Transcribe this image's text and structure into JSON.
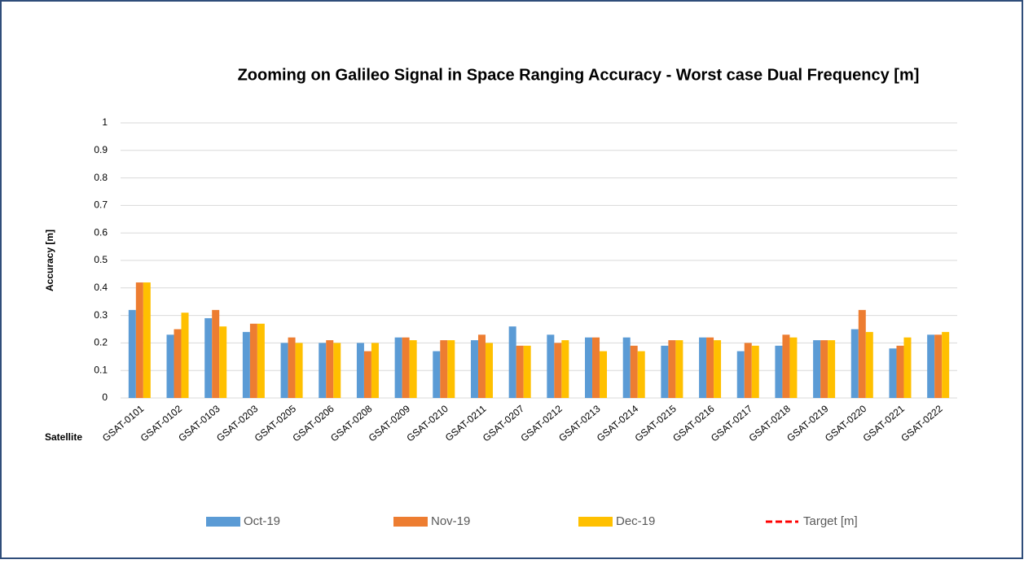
{
  "chart_data": {
    "type": "bar",
    "title": "Zooming on Galileo Signal in Space Ranging Accuracy - Worst case Dual Frequency [m]",
    "y_label": "Accuracy  [m]",
    "x_label": "Satellite",
    "categories": [
      "GSAT-0101",
      "GSAT-0102",
      "GSAT-0103",
      "GSAT-0203",
      "GSAT-0205",
      "GSAT-0206",
      "GSAT-0208",
      "GSAT-0209",
      "GSAT-0210",
      "GSAT-0211",
      "GSAT-0207",
      "GSAT-0212",
      "GSAT-0213",
      "GSAT-0214",
      "GSAT-0215",
      "GSAT-0216",
      "GSAT-0217",
      "GSAT-0218",
      "GSAT-0219",
      "GSAT-0220",
      "GSAT-0221",
      "GSAT-0222"
    ],
    "series": [
      {
        "name": "Oct-19",
        "color": "#5b9bd5",
        "values": [
          0.32,
          0.23,
          0.29,
          0.24,
          0.2,
          0.2,
          0.2,
          0.22,
          0.17,
          0.21,
          0.26,
          0.23,
          0.22,
          0.22,
          0.19,
          0.22,
          0.17,
          0.19,
          0.21,
          0.25,
          0.18,
          0.23
        ]
      },
      {
        "name": "Nov-19",
        "color": "#ed7d31",
        "values": [
          0.42,
          0.25,
          0.32,
          0.27,
          0.22,
          0.21,
          0.17,
          0.22,
          0.21,
          0.23,
          0.19,
          0.2,
          0.22,
          0.19,
          0.21,
          0.22,
          0.2,
          0.23,
          0.21,
          0.32,
          0.19,
          0.23
        ]
      },
      {
        "name": "Dec-19",
        "color": "#ffc000",
        "values": [
          0.42,
          0.31,
          0.26,
          0.27,
          0.2,
          0.2,
          0.2,
          0.21,
          0.21,
          0.2,
          0.19,
          0.21,
          0.17,
          0.17,
          0.21,
          0.21,
          0.19,
          0.22,
          0.21,
          0.24,
          0.22,
          0.24
        ]
      },
      {
        "name": "Target [m]",
        "color": "#ff0000",
        "style": "dashed"
      }
    ],
    "ylim": [
      0,
      1
    ],
    "yticks": [
      0,
      0.1,
      0.2,
      0.3,
      0.4,
      0.5,
      0.6,
      0.7,
      0.8,
      0.9,
      1
    ],
    "grid": true,
    "legend": "bottom"
  }
}
